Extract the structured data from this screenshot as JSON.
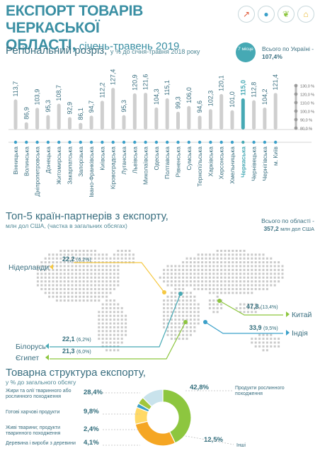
{
  "header": {
    "title_line1": "ЕКСПОРТ ТОВАРІВ ЧЕРКАСЬКОЇ",
    "title_line2": "ОБЛАСТІ,",
    "title_period": "січень-травень 2019"
  },
  "icons": [
    "chart-icon",
    "person-icon",
    "leaf-icon",
    "house-icon"
  ],
  "colors": {
    "accent": "#3a8fa3",
    "highlight": "#46a9b4",
    "bar": "#cfcfcf",
    "green": "#8dc63f",
    "yellow": "#f5c842",
    "blue": "#3ba0c9"
  },
  "regional": {
    "heading": "Регіональний розріз,",
    "subheading": "у % до січня-травня 2018 року",
    "badge": "7 місце",
    "ukraine_label": "Всього по Україні -",
    "ukraine_value": "107,4%"
  },
  "chart_data": [
    {
      "type": "bar",
      "categories": [
        "Вінницька",
        "Волинська",
        "Дніпропетровська",
        "Донецька",
        "Житомирська",
        "Закарпатська",
        "Запорізька",
        "Івано-Франківська",
        "Київська",
        "Кіровоградська",
        "Луганська",
        "Львівська",
        "Миколаївська",
        "Одеська",
        "Полтавська",
        "Рівненська",
        "Сумська",
        "Тернопільська",
        "Харківська",
        "Херсонська",
        "Хмельницька",
        "Черкаська",
        "Чернівецька",
        "Чернігівська",
        "м. Київ"
      ],
      "values": [
        113.7,
        86.9,
        103.9,
        95.3,
        108.7,
        92.9,
        86.1,
        94.7,
        112.2,
        127.4,
        95.3,
        120.9,
        121.6,
        104.3,
        115.1,
        99.3,
        106.0,
        94.6,
        102.3,
        120.1,
        101.0,
        115.0,
        112.8,
        104.2,
        121.4
      ],
      "value_labels": [
        "113,7",
        "86,9",
        "103,9",
        "95,3",
        "108,7",
        "92,9",
        "86,1",
        "94,7",
        "112,2",
        "127,4",
        "95,3",
        "120,9",
        "121,6",
        "104,3",
        "115,1",
        "99,3",
        "106,0",
        "94,6",
        "102,3",
        "120,1",
        "101,0",
        "115,0",
        "112,8",
        "104,2",
        "121,4"
      ],
      "highlight_index": 21,
      "scale_ticks": [
        "80,0 %",
        "90,0 %",
        "100,0 %",
        "110,0 %",
        "120,0 %",
        "130,0 %"
      ],
      "ylim": [
        80,
        130
      ]
    },
    {
      "type": "pie",
      "labels": [
        "Продукти рослинного походження",
        "Жири та олії тваринного або рослинного походження",
        "Готові харчові продукти",
        "Живі тварини; продукти тваринного походження",
        "Деревина і вироби з деревини",
        "Інші"
      ],
      "value_labels": [
        "42,8%",
        "28,4%",
        "9,8%",
        "2,4%",
        "4,1%",
        "12,5%"
      ],
      "values": [
        42.8,
        28.4,
        9.8,
        2.4,
        4.1,
        12.5
      ]
    }
  ],
  "partners": {
    "heading": "Топ-5 країн-партнерів з експорту,",
    "subheading": "млн дол США, (частка в загальних обсягах)",
    "total_label": "Всього по області -",
    "total_value": "357,2",
    "total_unit": "млн дол США",
    "items": [
      {
        "country": "Нідерланди",
        "value": "22,2",
        "share": "(6,2%)"
      },
      {
        "country": "Китай",
        "value": "47,8",
        "share": "(13,4%)"
      },
      {
        "country": "Індія",
        "value": "33,9",
        "share": "(9,5%)"
      },
      {
        "country": "Білорусь",
        "value": "22,1",
        "share": "(6,2%)"
      },
      {
        "country": "Єгипет",
        "value": "21,3",
        "share": "(6,0%)"
      }
    ]
  },
  "structure": {
    "heading": "Товарна структура експорту,",
    "subheading": "у % до загального обсягу"
  }
}
